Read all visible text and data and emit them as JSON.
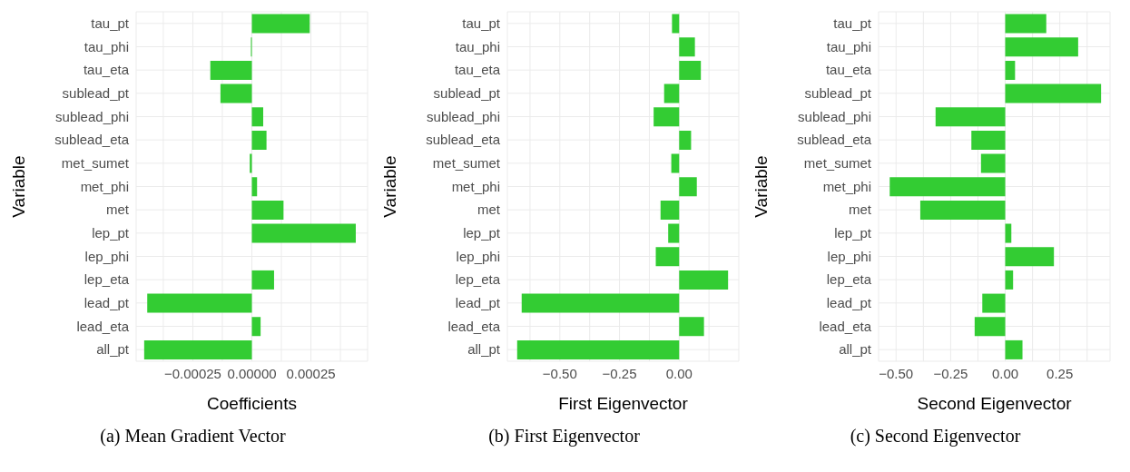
{
  "chart_data": [
    {
      "type": "bar",
      "orientation": "horizontal",
      "title": "(a) Mean Gradient Vector",
      "xlabel": "Coefficients",
      "ylabel": "Variable",
      "color": "#33cc33",
      "grid": true,
      "categories": [
        "tau_pt",
        "tau_phi",
        "tau_eta",
        "sublead_pt",
        "sublead_phi",
        "sublead_eta",
        "met_sumet",
        "met_phi",
        "met",
        "lep_pt",
        "lep_phi",
        "lep_eta",
        "lead_pt",
        "lead_eta",
        "all_pt"
      ],
      "values": [
        0.000245,
        -4e-06,
        -0.000176,
        -0.000133,
        4.8e-05,
        6.2e-05,
        -9e-06,
        2.2e-05,
        0.000134,
        0.00044,
        0,
        9.4e-05,
        -0.000443,
        3.7e-05,
        -0.000456
      ],
      "xlim": [
        -0.00049,
        0.00049
      ],
      "xticks": [
        {
          "value": -0.000375,
          "label": null
        },
        {
          "value": -0.00025,
          "label": "−0.00025"
        },
        {
          "value": -0.000125,
          "label": null
        },
        {
          "value": 0,
          "label": "0.00000"
        },
        {
          "value": 0.000125,
          "label": null
        },
        {
          "value": 0.00025,
          "label": "0.00025"
        },
        {
          "value": 0.000375,
          "label": null
        }
      ]
    },
    {
      "type": "bar",
      "orientation": "horizontal",
      "title": "(b) First Eigenvector",
      "xlabel": "First Eigenvector",
      "ylabel": "Variable",
      "color": "#33cc33",
      "grid": true,
      "categories": [
        "tau_pt",
        "tau_phi",
        "tau_eta",
        "sublead_pt",
        "sublead_phi",
        "sublead_eta",
        "met_sumet",
        "met_phi",
        "met",
        "lep_pt",
        "lep_phi",
        "lep_eta",
        "lead_pt",
        "lead_eta",
        "all_pt"
      ],
      "values": [
        -0.03,
        0.066,
        0.091,
        -0.063,
        -0.107,
        0.05,
        -0.033,
        0.074,
        -0.078,
        -0.046,
        -0.098,
        0.205,
        -0.66,
        0.104,
        -0.679
      ],
      "xlim": [
        -0.72,
        0.25
      ],
      "xticks": [
        {
          "value": -0.625,
          "label": null
        },
        {
          "value": -0.5,
          "label": "−0.50"
        },
        {
          "value": -0.375,
          "label": null
        },
        {
          "value": -0.25,
          "label": "−0.25"
        },
        {
          "value": -0.125,
          "label": null
        },
        {
          "value": 0,
          "label": "0.00"
        },
        {
          "value": 0.125,
          "label": null
        }
      ]
    },
    {
      "type": "bar",
      "orientation": "horizontal",
      "title": "(c) Second Eigenvector",
      "xlabel": "Second Eigenvector",
      "ylabel": "Variable",
      "color": "#33cc33",
      "grid": true,
      "categories": [
        "tau_pt",
        "tau_phi",
        "tau_eta",
        "sublead_pt",
        "sublead_phi",
        "sublead_eta",
        "met_sumet",
        "met_phi",
        "met",
        "lep_pt",
        "lep_phi",
        "lep_eta",
        "lead_pt",
        "lead_eta",
        "all_pt"
      ],
      "values": [
        0.188,
        0.334,
        0.045,
        0.439,
        -0.319,
        -0.155,
        -0.111,
        -0.529,
        -0.389,
        0.028,
        0.223,
        0.036,
        -0.105,
        -0.14,
        0.079
      ],
      "xlim": [
        -0.58,
        0.48
      ],
      "xticks": [
        {
          "value": -0.5,
          "label": "−0.50"
        },
        {
          "value": -0.375,
          "label": null
        },
        {
          "value": -0.25,
          "label": "−0.25"
        },
        {
          "value": -0.125,
          "label": null
        },
        {
          "value": 0,
          "label": "0.00"
        },
        {
          "value": 0.125,
          "label": null
        },
        {
          "value": 0.25,
          "label": "0.25"
        },
        {
          "value": 0.375,
          "label": null
        }
      ]
    }
  ]
}
